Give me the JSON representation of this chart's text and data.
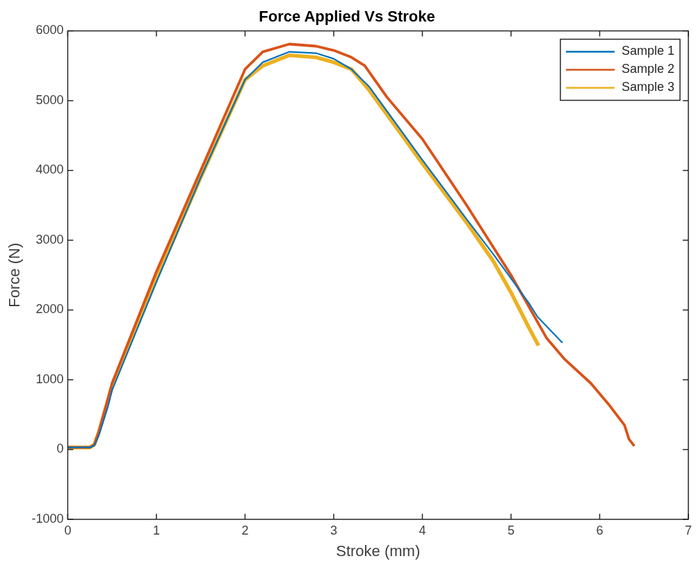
{
  "chart_data": {
    "type": "line",
    "title": "Force Applied Vs Stroke",
    "xlabel": "Stroke (mm)",
    "ylabel": "Force (N)",
    "xlim": [
      0,
      7
    ],
    "xticks": [
      0,
      1,
      2,
      3,
      4,
      5,
      6,
      7
    ],
    "ylim": [
      -1000,
      6000
    ],
    "yticks": [
      -1000,
      0,
      1000,
      2000,
      3000,
      4000,
      5000,
      6000
    ],
    "grid": false,
    "legend": "top right",
    "marker": "none",
    "line_style": "solid",
    "series": [
      {
        "name": "Sample 1",
        "color": "#0072bd",
        "x": [
          0,
          0.25,
          0.3,
          0.35,
          0.45,
          0.5,
          1,
          1.5,
          2,
          2.2,
          2.5,
          2.8,
          3,
          3.2,
          3.4,
          3.6,
          4,
          4.5,
          4.8,
          5,
          5.2,
          5.3,
          5.58
        ],
        "values": [
          30,
          30,
          60,
          200,
          600,
          850,
          2400,
          3900,
          5300,
          5550,
          5700,
          5680,
          5600,
          5450,
          5200,
          4850,
          4150,
          3300,
          2800,
          2450,
          2100,
          1900,
          1530
        ]
      },
      {
        "name": "Sample 2",
        "color": "#d95319",
        "x": [
          0,
          0.25,
          0.3,
          0.35,
          0.5,
          1,
          1.5,
          2,
          2.2,
          2.5,
          2.8,
          3,
          3.2,
          3.35,
          3.6,
          4,
          4.5,
          5,
          5.2,
          5.4,
          5.6,
          5.9,
          6.1,
          6.28,
          6.33,
          6.39
        ],
        "values": [
          30,
          30,
          70,
          250,
          950,
          2550,
          4000,
          5450,
          5700,
          5810,
          5780,
          5720,
          5620,
          5500,
          5050,
          4450,
          3500,
          2500,
          2050,
          1600,
          1300,
          950,
          650,
          350,
          150,
          50
        ]
      },
      {
        "name": "Sample 3",
        "color": "#edb120",
        "x": [
          0,
          0.25,
          0.3,
          0.35,
          0.5,
          1,
          1.5,
          2,
          2.2,
          2.5,
          2.8,
          3,
          3.2,
          3.4,
          3.6,
          4,
          4.5,
          4.8,
          5,
          5.2,
          5.31
        ],
        "values": [
          30,
          30,
          70,
          250,
          900,
          2450,
          3900,
          5300,
          5500,
          5650,
          5620,
          5550,
          5450,
          5150,
          4800,
          4100,
          3250,
          2700,
          2250,
          1750,
          1490
        ]
      }
    ]
  }
}
